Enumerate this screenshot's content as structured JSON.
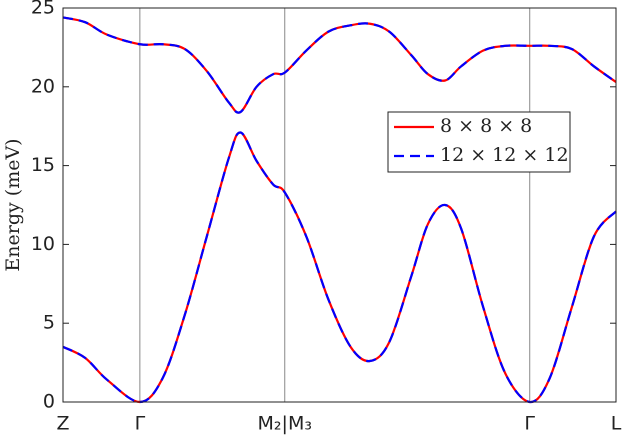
{
  "chart_data": {
    "type": "line",
    "ylabel": "Energy (meV)",
    "xlim": [
      0,
      1
    ],
    "xticks": [
      {
        "value": 0,
        "label": "Z"
      },
      {
        "value": 0.139,
        "label": "Γ"
      },
      {
        "value": 0.401,
        "label": "M₂|M₃"
      },
      {
        "value": 0.844,
        "label": "Γ"
      },
      {
        "value": 1,
        "label": "L"
      }
    ],
    "ylim": [
      0,
      25
    ],
    "yticks": [
      0,
      5,
      10,
      15,
      20,
      25
    ],
    "legend": "upper-right",
    "x": [
      0,
      0.04,
      0.08,
      0.139,
      0.18,
      0.22,
      0.26,
      0.3,
      0.321,
      0.35,
      0.38,
      0.401,
      0.44,
      0.48,
      0.52,
      0.555,
      0.59,
      0.63,
      0.66,
      0.691,
      0.72,
      0.76,
      0.8,
      0.844,
      0.88,
      0.92,
      0.96,
      1
    ],
    "series": [
      {
        "name": "8 × 8 × 8",
        "color": "#ff0000",
        "dash": false,
        "bands": [
          [
            3.5,
            2.8,
            1.4,
            0,
            1.5,
            5.5,
            10.5,
            15.5,
            17.1,
            15.3,
            13.8,
            13.3,
            10.5,
            6.5,
            3.5,
            2.6,
            3.8,
            8,
            11.3,
            12.5,
            11,
            6,
            1.8,
            0,
            1.5,
            6,
            10.5,
            12.1
          ],
          [
            24.4,
            24.1,
            23.3,
            22.7,
            22.7,
            22.4,
            21,
            19,
            18.4,
            20,
            20.8,
            20.9,
            22.3,
            23.5,
            23.9,
            24,
            23.5,
            22,
            20.8,
            20.4,
            21.3,
            22.3,
            22.6,
            22.6,
            22.6,
            22.4,
            21.3,
            20.3
          ]
        ]
      },
      {
        "name": "12 × 12 × 12",
        "color": "#0000ff",
        "dash": true,
        "bands": [
          [
            3.5,
            2.8,
            1.4,
            0,
            1.5,
            5.5,
            10.5,
            15.5,
            17.1,
            15.3,
            13.8,
            13.3,
            10.5,
            6.5,
            3.5,
            2.6,
            3.8,
            8,
            11.3,
            12.5,
            11,
            6,
            1.8,
            0,
            1.5,
            6,
            10.5,
            12.1
          ],
          [
            24.4,
            24.1,
            23.3,
            22.7,
            22.7,
            22.4,
            21,
            19,
            18.4,
            20,
            20.8,
            20.9,
            22.3,
            23.5,
            23.9,
            24,
            23.5,
            22,
            20.8,
            20.4,
            21.3,
            22.3,
            22.6,
            22.6,
            22.6,
            22.4,
            21.3,
            20.3
          ]
        ]
      }
    ]
  }
}
